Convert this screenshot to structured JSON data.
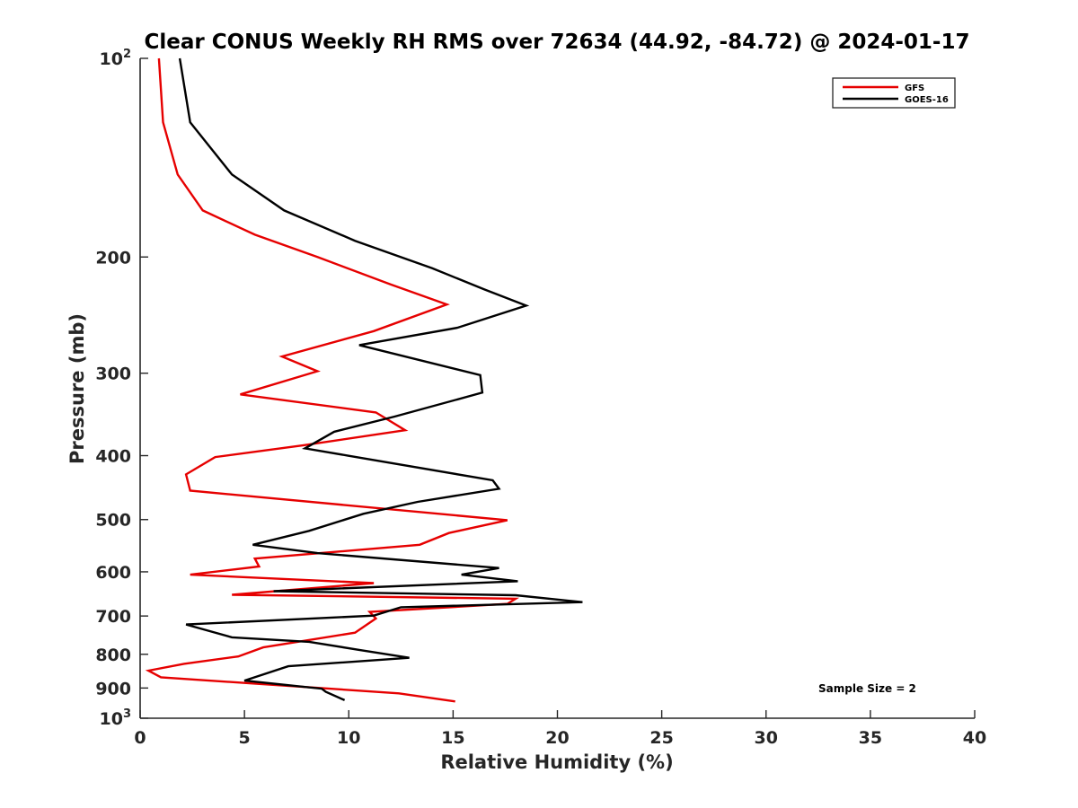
{
  "chart_data": {
    "type": "line",
    "title": "Clear CONUS Weekly RH RMS over 72634 (44.92, -84.72) @ 2024-01-17",
    "xlabel": "Relative Humidity (%)",
    "ylabel": "Pressure (mb)",
    "xlim": [
      0,
      40
    ],
    "ylim": [
      100,
      1000
    ],
    "y_scale": "log",
    "y_direction": "reversed",
    "x_ticks": [
      0,
      5,
      10,
      15,
      20,
      25,
      30,
      35,
      40
    ],
    "y_ticks": [
      {
        "value": 100,
        "base": "10",
        "exp": "2"
      },
      {
        "value": 200,
        "label": "200"
      },
      {
        "value": 300,
        "label": "300"
      },
      {
        "value": 400,
        "label": "400"
      },
      {
        "value": 500,
        "label": "500"
      },
      {
        "value": 600,
        "label": "600"
      },
      {
        "value": 700,
        "label": "700"
      },
      {
        "value": 800,
        "label": "800"
      },
      {
        "value": 900,
        "label": "900"
      },
      {
        "value": 1000,
        "base": "10",
        "exp": "3"
      }
    ],
    "legend_position": "top-right",
    "annotation": "Sample Size = 2",
    "series": [
      {
        "name": "GFS",
        "color": "#e60000",
        "points": [
          [
            0.9,
            100
          ],
          [
            1.1,
            125
          ],
          [
            1.8,
            150
          ],
          [
            3.0,
            170
          ],
          [
            5.5,
            185
          ],
          [
            8.5,
            200
          ],
          [
            12.0,
            220
          ],
          [
            14.7,
            236
          ],
          [
            11.2,
            259
          ],
          [
            6.8,
            283
          ],
          [
            8.5,
            298
          ],
          [
            4.8,
            323
          ],
          [
            11.3,
            344
          ],
          [
            12.7,
            366
          ],
          [
            7.8,
            386
          ],
          [
            3.6,
            402
          ],
          [
            2.2,
            427
          ],
          [
            2.4,
            452
          ],
          [
            17.6,
            501
          ],
          [
            14.8,
            524
          ],
          [
            13.4,
            546
          ],
          [
            5.5,
            573
          ],
          [
            5.7,
            589
          ],
          [
            2.4,
            606
          ],
          [
            11.2,
            624
          ],
          [
            4.4,
            650
          ],
          [
            18.0,
            659
          ],
          [
            17.6,
            671
          ],
          [
            11.0,
            690
          ],
          [
            11.3,
            706
          ],
          [
            10.3,
            742
          ],
          [
            5.9,
            781
          ],
          [
            4.7,
            806
          ],
          [
            2.1,
            827
          ],
          [
            0.4,
            847
          ],
          [
            1.0,
            867
          ],
          [
            12.4,
            917
          ],
          [
            15.1,
            943
          ]
        ]
      },
      {
        "name": "GOES-16",
        "color": "#000000",
        "points": [
          [
            1.9,
            100
          ],
          [
            2.4,
            125
          ],
          [
            4.4,
            150
          ],
          [
            6.9,
            170
          ],
          [
            10.3,
            189
          ],
          [
            14.0,
            208
          ],
          [
            16.5,
            224
          ],
          [
            18.5,
            237
          ],
          [
            15.2,
            256
          ],
          [
            10.5,
            272
          ],
          [
            16.3,
            302
          ],
          [
            16.4,
            321
          ],
          [
            12.2,
            349
          ],
          [
            9.3,
            368
          ],
          [
            7.9,
            390
          ],
          [
            16.9,
            436
          ],
          [
            17.2,
            449
          ],
          [
            13.3,
            470
          ],
          [
            10.7,
            490
          ],
          [
            8.1,
            520
          ],
          [
            5.4,
            546
          ],
          [
            8.5,
            562
          ],
          [
            17.2,
            592
          ],
          [
            15.4,
            606
          ],
          [
            18.1,
            620
          ],
          [
            6.4,
            642
          ],
          [
            18.0,
            651
          ],
          [
            21.2,
            667
          ],
          [
            12.5,
            679
          ],
          [
            11.2,
            699
          ],
          [
            2.2,
            721
          ],
          [
            4.4,
            754
          ],
          [
            8.1,
            766
          ],
          [
            10.5,
            788
          ],
          [
            12.9,
            810
          ],
          [
            7.1,
            834
          ],
          [
            5.0,
            877
          ],
          [
            8.7,
            902
          ],
          [
            8.9,
            912
          ],
          [
            9.8,
            939
          ]
        ]
      }
    ]
  }
}
